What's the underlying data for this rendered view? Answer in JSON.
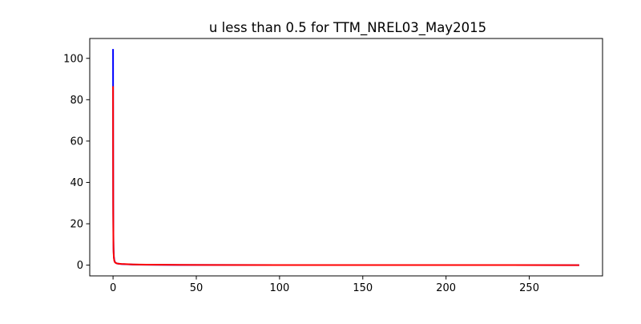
{
  "chart_data": {
    "type": "line",
    "title": "u less than 0.5  for TTM_NREL03_May2015",
    "xlabel": "",
    "ylabel": "",
    "xlim": [
      -14,
      294
    ],
    "ylim": [
      -5.2,
      109.6
    ],
    "x_ticks": [
      0,
      50,
      100,
      150,
      200,
      250
    ],
    "y_ticks": [
      0,
      20,
      40,
      60,
      80,
      100
    ],
    "grid": false,
    "legend": "none",
    "series": [
      {
        "color": "#0000ff",
        "x": [
          0,
          0.05,
          0.1,
          0.2,
          0.3,
          0.5,
          0.8,
          1.2,
          2,
          3,
          5,
          8,
          12,
          20,
          40,
          100,
          200,
          280
        ],
        "y": [
          104.5,
          60,
          30,
          15,
          8,
          4,
          2.2,
          1.4,
          0.9,
          0.7,
          0.5,
          0.4,
          0.3,
          0.2,
          0.1,
          0.05,
          0.02,
          0.01
        ]
      },
      {
        "color": "#ff0000",
        "x": [
          0,
          0.05,
          0.1,
          0.2,
          0.3,
          0.5,
          0.8,
          1.2,
          2,
          3,
          5,
          8,
          12,
          20,
          40,
          100,
          200,
          280
        ],
        "y": [
          86.5,
          50,
          25,
          12,
          6.5,
          3.5,
          2,
          1.3,
          0.9,
          0.7,
          0.55,
          0.45,
          0.35,
          0.25,
          0.12,
          0.05,
          0.02,
          0.01
        ]
      }
    ]
  }
}
